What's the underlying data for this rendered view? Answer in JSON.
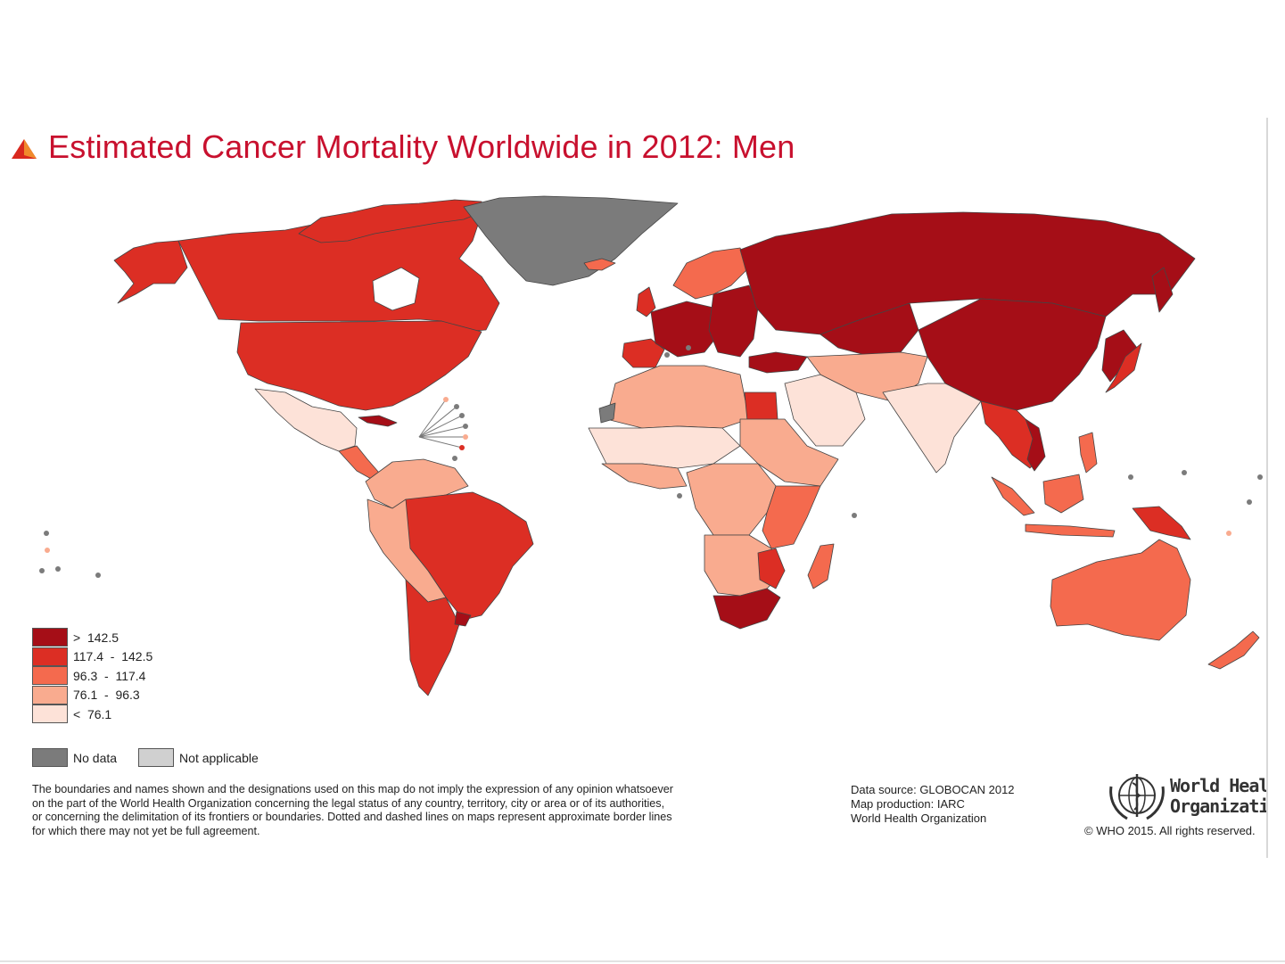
{
  "title": "Estimated Cancer Mortality Worldwide in 2012: Men",
  "colors": {
    "title": "#c8102e",
    "class1": "#a50e17",
    "class2": "#dc2e24",
    "class3": "#f46a4e",
    "class4": "#f9ab8f",
    "class5": "#fde2d8",
    "no_data": "#7b7b7b",
    "not_applicable": "#d0d0d0",
    "ocean": "#ffffff",
    "border": "#444444"
  },
  "legend": {
    "classes": [
      {
        "label": ">  142.5",
        "color": "#a50e17"
      },
      {
        "label": "117.4  -  142.5",
        "color": "#dc2e24"
      },
      {
        "label": "96.3  -  117.4",
        "color": "#f46a4e"
      },
      {
        "label": "76.1  -  96.3",
        "color": "#f9ab8f"
      },
      {
        "label": "<  76.1",
        "color": "#fde2d8"
      }
    ],
    "no_data": "No data",
    "not_applicable": "Not applicable"
  },
  "disclaimer": [
    "The boundaries and names shown and the designations used on this map do not imply the expression of any opinion whatsoever",
    "on the part of the World Health Organization concerning the legal status of any country, territory, city or area or of its authorities,",
    "or concerning the delimitation of its frontiers or boundaries. Dotted and dashed lines on maps represent approximate border lines",
    "for which there may not yet be full agreement."
  ],
  "source": {
    "line1": "Data source: GLOBOCAN 2012",
    "line2": "Map production: IARC",
    "line3": "World Health Organization"
  },
  "who": {
    "name_line1": "World Health",
    "name_line2": "Organization",
    "copyright": "© WHO 2015. All rights reserved."
  }
}
